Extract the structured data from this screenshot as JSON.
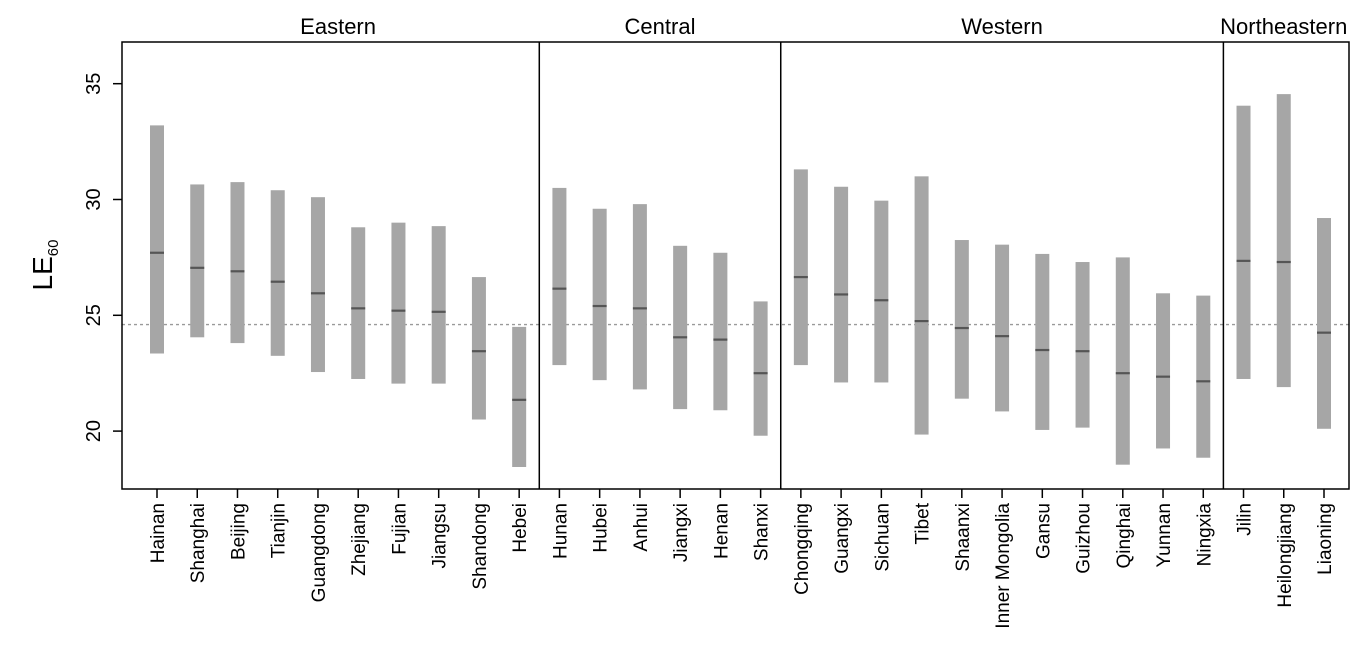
{
  "chart_data": {
    "type": "interval",
    "ylabel": "LE",
    "ylabel_sub": "60",
    "ylim": [
      17.5,
      36.8
    ],
    "yticks": [
      20,
      25,
      30,
      35
    ],
    "reference_line": 24.6,
    "colors": {
      "bar": "#a6a6a6",
      "median": "#555555",
      "reference": "#9a9a9a",
      "axis": "#000000"
    },
    "groups": [
      {
        "name": "Eastern",
        "provinces": [
          {
            "name": "Hainan",
            "low": 23.35,
            "high": 33.2,
            "median": 27.7
          },
          {
            "name": "Shanghai",
            "low": 24.05,
            "high": 30.65,
            "median": 27.05
          },
          {
            "name": "Beijing",
            "low": 23.8,
            "high": 30.75,
            "median": 26.9
          },
          {
            "name": "Tianjin",
            "low": 23.25,
            "high": 30.4,
            "median": 26.45
          },
          {
            "name": "Guangdong",
            "low": 22.55,
            "high": 30.1,
            "median": 25.95
          },
          {
            "name": "Zhejiang",
            "low": 22.25,
            "high": 28.8,
            "median": 25.3
          },
          {
            "name": "Fujian",
            "low": 22.05,
            "high": 29.0,
            "median": 25.2
          },
          {
            "name": "Jiangsu",
            "low": 22.05,
            "high": 28.85,
            "median": 25.15
          },
          {
            "name": "Shandong",
            "low": 20.5,
            "high": 26.65,
            "median": 23.45
          },
          {
            "name": "Hebei",
            "low": 18.45,
            "high": 24.5,
            "median": 21.35
          }
        ]
      },
      {
        "name": "Central",
        "provinces": [
          {
            "name": "Hunan",
            "low": 22.85,
            "high": 30.5,
            "median": 26.15
          },
          {
            "name": "Hubei",
            "low": 22.2,
            "high": 29.6,
            "median": 25.4
          },
          {
            "name": "Anhui",
            "low": 21.8,
            "high": 29.8,
            "median": 25.3
          },
          {
            "name": "Jiangxi",
            "low": 20.95,
            "high": 28.0,
            "median": 24.05
          },
          {
            "name": "Henan",
            "low": 20.9,
            "high": 27.7,
            "median": 23.95
          },
          {
            "name": "Shanxi",
            "low": 19.8,
            "high": 25.6,
            "median": 22.5
          }
        ]
      },
      {
        "name": "Western",
        "provinces": [
          {
            "name": "Chongqing",
            "low": 22.85,
            "high": 31.3,
            "median": 26.65
          },
          {
            "name": "Guangxi",
            "low": 22.1,
            "high": 30.55,
            "median": 25.9
          },
          {
            "name": "Sichuan",
            "low": 22.1,
            "high": 29.95,
            "median": 25.65
          },
          {
            "name": "Tibet",
            "low": 19.85,
            "high": 31.0,
            "median": 24.75
          },
          {
            "name": "Shaanxi",
            "low": 21.4,
            "high": 28.25,
            "median": 24.45
          },
          {
            "name": "Inner Mongolia",
            "low": 20.85,
            "high": 28.05,
            "median": 24.1
          },
          {
            "name": "Gansu",
            "low": 20.05,
            "high": 27.65,
            "median": 23.5
          },
          {
            "name": "Guizhou",
            "low": 20.15,
            "high": 27.3,
            "median": 23.45
          },
          {
            "name": "Qinghai",
            "low": 18.55,
            "high": 27.5,
            "median": 22.5
          },
          {
            "name": "Yunnan",
            "low": 19.25,
            "high": 25.95,
            "median": 22.35
          },
          {
            "name": "Ningxia",
            "low": 18.85,
            "high": 25.85,
            "median": 22.15
          }
        ]
      },
      {
        "name": "Northeastern",
        "provinces": [
          {
            "name": "Jilin",
            "low": 22.25,
            "high": 34.05,
            "median": 27.35
          },
          {
            "name": "Heilongjiang",
            "low": 21.9,
            "high": 34.55,
            "median": 27.3
          },
          {
            "name": "Liaoning",
            "low": 20.1,
            "high": 29.2,
            "median": 24.25
          }
        ]
      }
    ]
  }
}
